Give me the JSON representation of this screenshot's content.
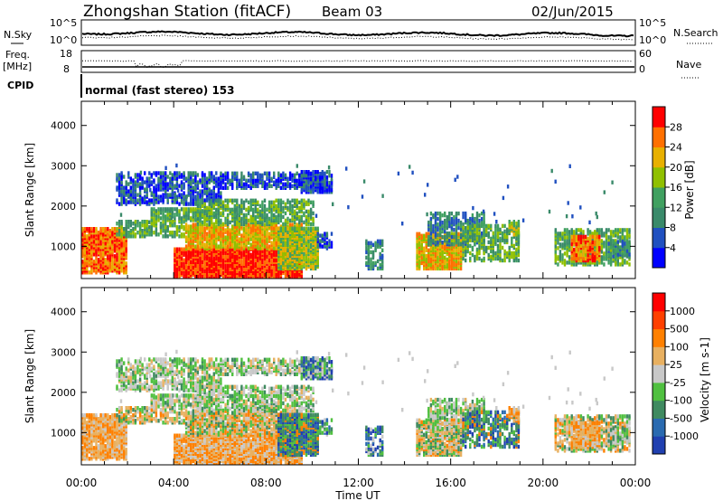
{
  "header": {
    "station": "Zhongshan Station (fitACF)",
    "beam": "Beam 03",
    "date": "02/Jun/2015"
  },
  "left_labels": {
    "nsky": "N.Sky",
    "freq": "Freq.",
    "freq_unit": "[MHz]",
    "cpid": "CPID",
    "noise_ticks": [
      "10^5",
      "10^0"
    ],
    "freq_ticks": [
      "18",
      "8"
    ]
  },
  "right_labels": {
    "nsearch": "N.Search",
    "nave": "Nave",
    "noise_ticks": [
      "10^5",
      "10^0"
    ],
    "nave_ticks": [
      "60",
      "0"
    ]
  },
  "cpid_text": "normal (fast stereo) 153",
  "chart_data": [
    {
      "type": "heatmap",
      "id": "power",
      "ylabel": "Slant Range [km]",
      "y_ticks": [
        "1000",
        "2000",
        "3000",
        "4000"
      ],
      "ylim": [
        200,
        4600
      ],
      "x_ticks": [
        "00:00",
        "04:00",
        "08:00",
        "12:00",
        "16:00",
        "20:00",
        "00:00"
      ],
      "xlim_hours": [
        0,
        24
      ],
      "colorbar": {
        "label": "Power [dB]",
        "ticks": [
          "4",
          "8",
          "12",
          "16",
          "20",
          "24",
          "28"
        ],
        "range": [
          0,
          30
        ],
        "colors": [
          "#0000ff",
          "#2050c0",
          "#3a8a6a",
          "#40a060",
          "#90c000",
          "#e8b000",
          "#ff7000",
          "#ff0000"
        ]
      }
    },
    {
      "type": "heatmap",
      "id": "velocity",
      "ylabel": "Slant Range [km]",
      "y_ticks": [
        "1000",
        "2000",
        "3000",
        "4000"
      ],
      "ylim": [
        200,
        4600
      ],
      "x_ticks": [
        "00:00",
        "04:00",
        "08:00",
        "12:00",
        "16:00",
        "20:00",
        "00:00"
      ],
      "xlabel": "Time UT",
      "xlim_hours": [
        0,
        24
      ],
      "colorbar": {
        "label": "Velocity [m s-1]",
        "ticks": [
          "1000",
          "500",
          "100",
          "25",
          "-25",
          "-100",
          "-500",
          "-1000"
        ],
        "colors": [
          "#2040b0",
          "#2a6ab0",
          "#3f8a60",
          "#50c040",
          "#c8c8c8",
          "#e8b060",
          "#ff8000",
          "#ff4000",
          "#ff0000"
        ]
      }
    }
  ]
}
